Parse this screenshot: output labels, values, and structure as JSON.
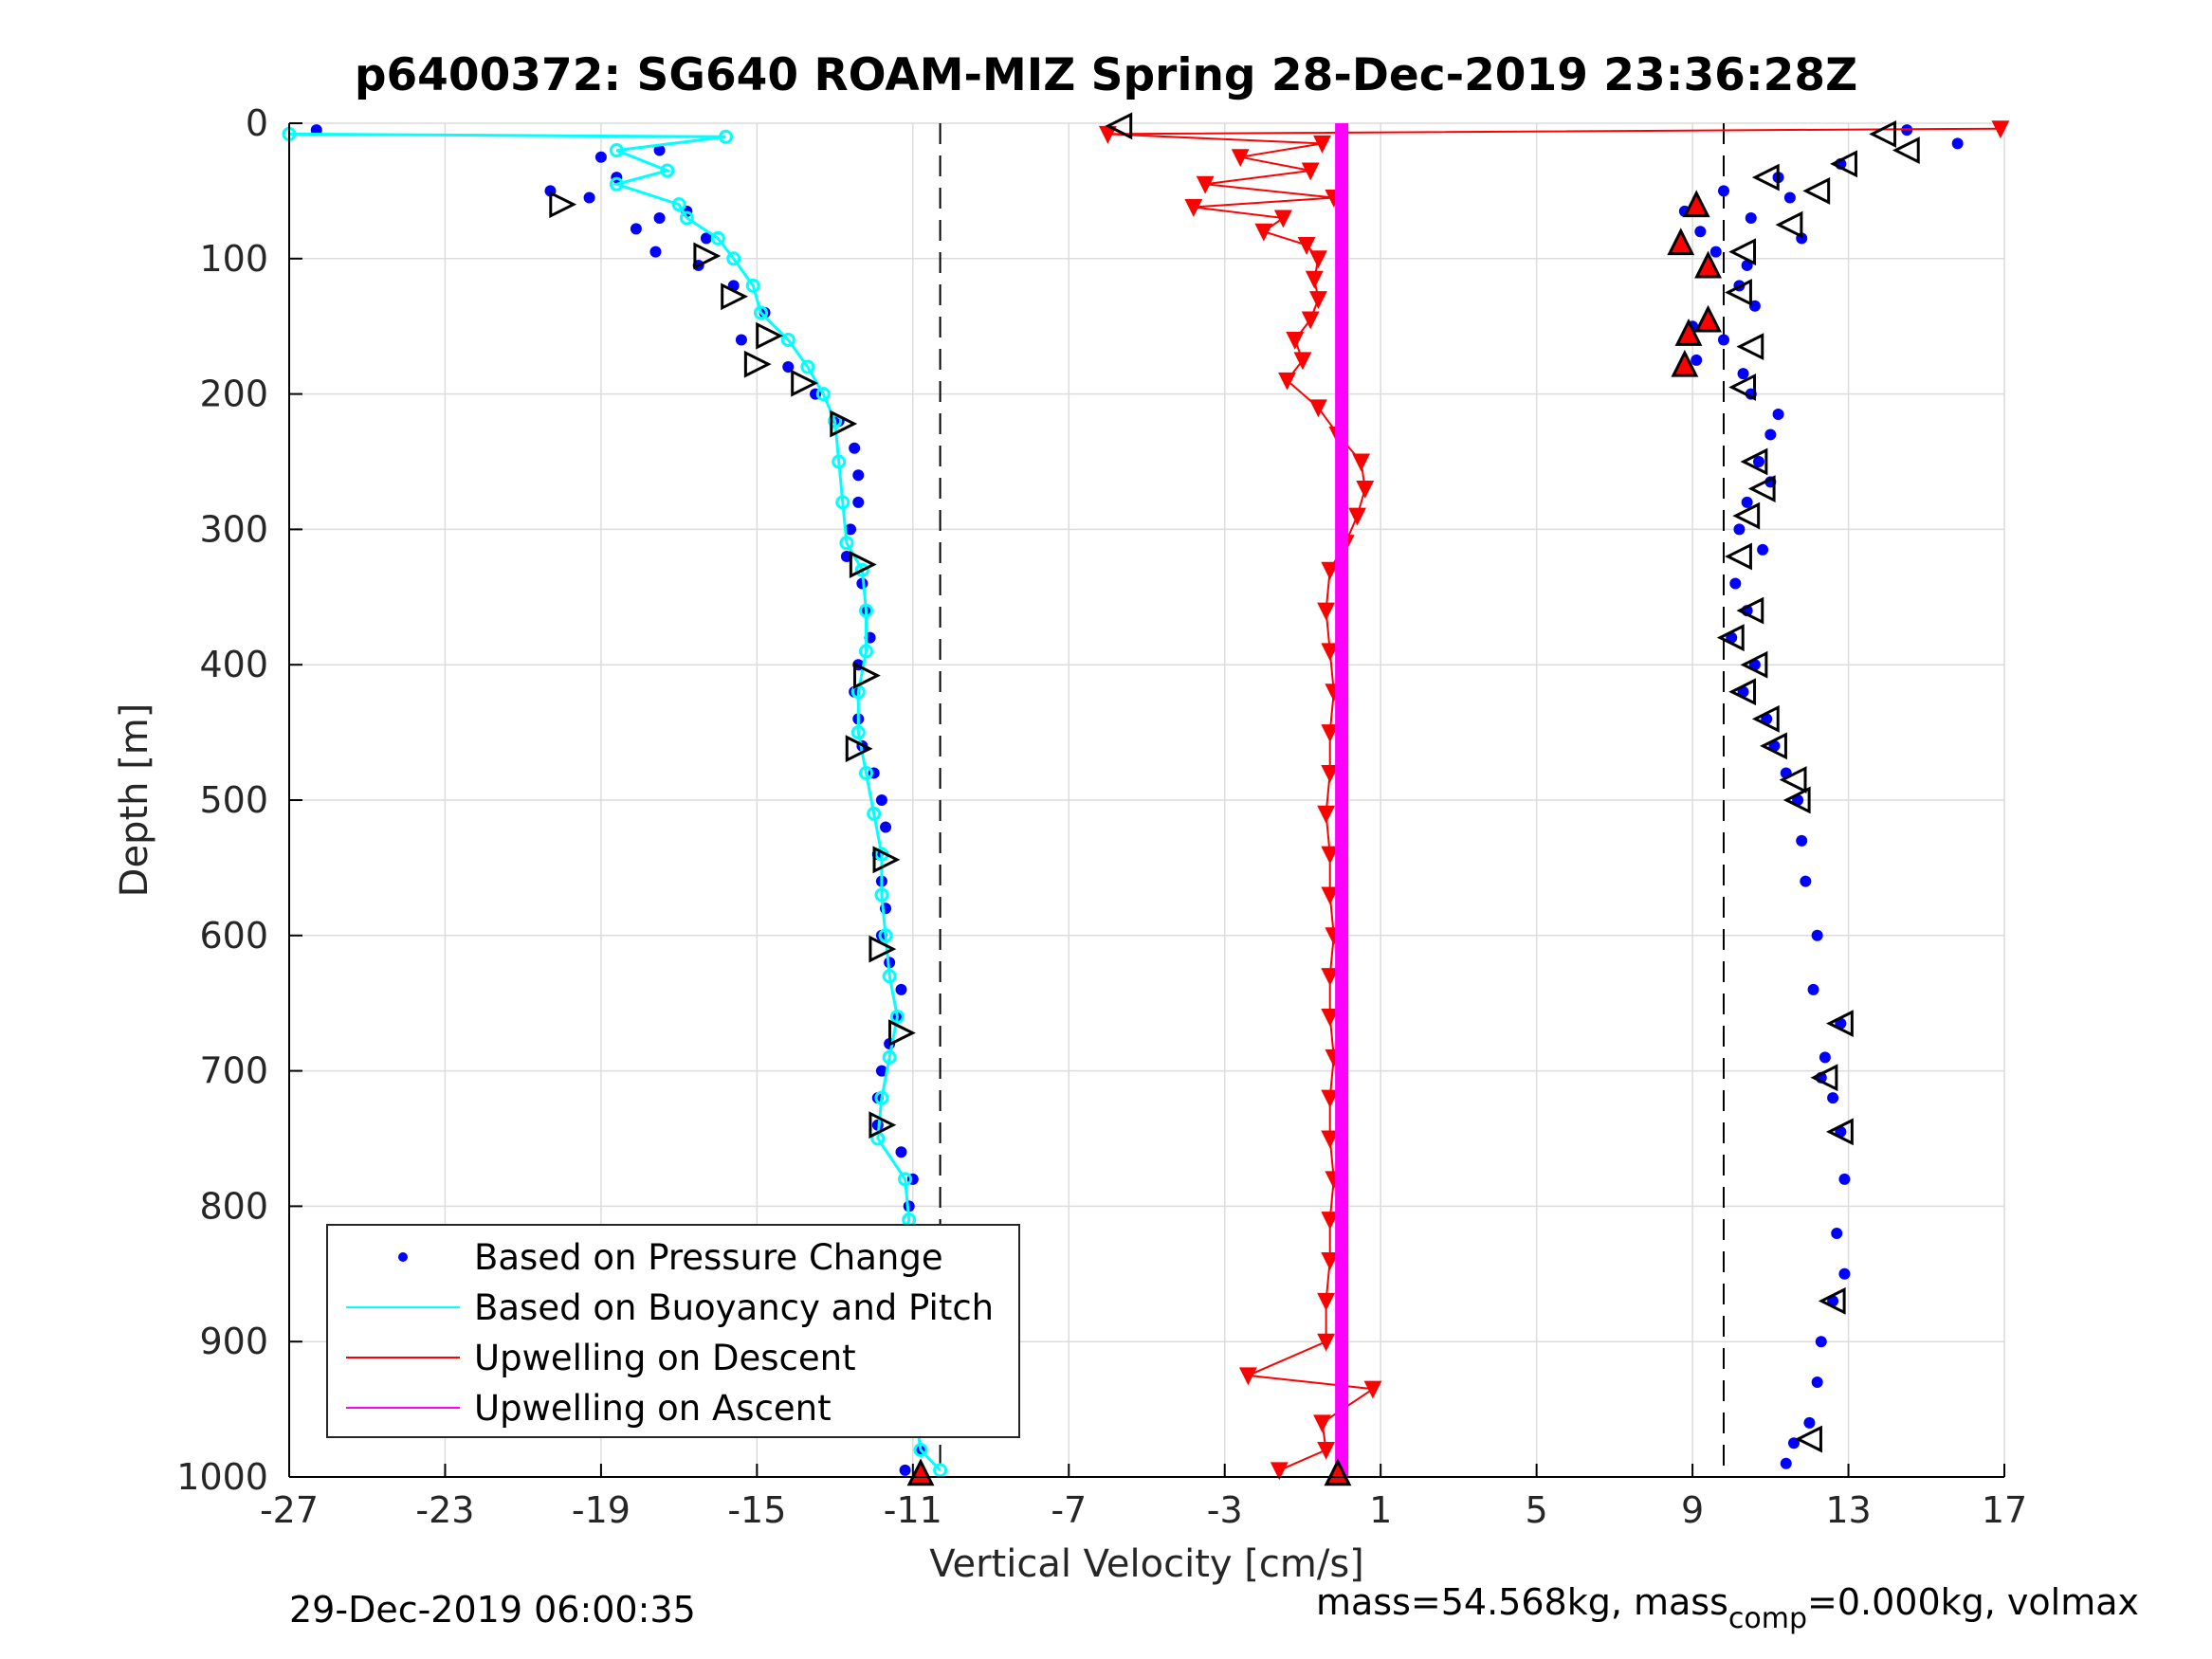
{
  "title": "p6400372: SG640 ROAM-MIZ Spring 28-Dec-2019 23:36:28Z",
  "footer": {
    "left": "29-Dec-2019 06:00:35",
    "right_prefix": "mass=54.568kg, mass",
    "right_sub": "comp",
    "right_suffix": "=0.000kg, volmax"
  },
  "colors": {
    "pressure": "#0000ff",
    "buoyancy": "#00ffff",
    "upwelling_descent": "#ff0000",
    "upwelling_ascent": "#ff00ff"
  },
  "chart_data": {
    "type": "scatter",
    "xlabel": "Vertical Velocity [cm/s]",
    "ylabel": "Depth [m]",
    "xlim": [
      -27,
      17
    ],
    "ylim": [
      0,
      1000
    ],
    "y_reversed": true,
    "xticks": [
      -27,
      -23,
      -19,
      -15,
      -11,
      -7,
      -3,
      1,
      5,
      9,
      13,
      17
    ],
    "yticks": [
      0,
      100,
      200,
      300,
      400,
      500,
      600,
      700,
      800,
      900,
      1000
    ],
    "grid": true,
    "legend_position": "bottom-left",
    "reference_lines_x": [
      -10.3,
      9.8
    ],
    "legend": [
      {
        "label": "Based on Pressure Change",
        "style": "dot",
        "color": "#0000ff"
      },
      {
        "label": "Based on Buoyancy and Pitch",
        "style": "line",
        "color": "#00ffff"
      },
      {
        "label": "Upwelling on Descent",
        "style": "line",
        "color": "#ff0000"
      },
      {
        "label": "Upwelling on Ascent",
        "style": "line",
        "color": "#ff00ff"
      }
    ],
    "series": [
      {
        "name": "Based on Pressure Change",
        "style": "dot",
        "color": "#0000ff",
        "profile": "descent",
        "points": [
          [
            -26.3,
            5
          ],
          [
            -19.0,
            25
          ],
          [
            -17.5,
            20
          ],
          [
            -18.6,
            40
          ],
          [
            -20.3,
            50
          ],
          [
            -19.3,
            55
          ],
          [
            -16.8,
            65
          ],
          [
            -17.5,
            70
          ],
          [
            -18.1,
            78
          ],
          [
            -16.3,
            85
          ],
          [
            -17.6,
            95
          ],
          [
            -16.5,
            105
          ],
          [
            -15.6,
            120
          ],
          [
            -14.8,
            140
          ],
          [
            -15.4,
            160
          ],
          [
            -14.2,
            180
          ],
          [
            -13.5,
            200
          ],
          [
            -12.9,
            220
          ],
          [
            -12.5,
            240
          ],
          [
            -12.4,
            260
          ],
          [
            -12.4,
            280
          ],
          [
            -12.6,
            300
          ],
          [
            -12.7,
            320
          ],
          [
            -12.3,
            340
          ],
          [
            -12.2,
            360
          ],
          [
            -12.1,
            380
          ],
          [
            -12.4,
            400
          ],
          [
            -12.5,
            420
          ],
          [
            -12.4,
            440
          ],
          [
            -12.3,
            460
          ],
          [
            -12.0,
            480
          ],
          [
            -11.8,
            500
          ],
          [
            -11.7,
            520
          ],
          [
            -11.9,
            540
          ],
          [
            -11.8,
            560
          ],
          [
            -11.7,
            580
          ],
          [
            -11.8,
            600
          ],
          [
            -11.6,
            620
          ],
          [
            -11.3,
            640
          ],
          [
            -11.4,
            660
          ],
          [
            -11.6,
            680
          ],
          [
            -11.8,
            700
          ],
          [
            -11.9,
            720
          ],
          [
            -11.9,
            740
          ],
          [
            -11.3,
            760
          ],
          [
            -11.0,
            780
          ],
          [
            -11.1,
            800
          ],
          [
            -11.3,
            820
          ],
          [
            -11.5,
            840
          ],
          [
            -11.7,
            860
          ],
          [
            -11.8,
            880
          ],
          [
            -11.9,
            900
          ],
          [
            -11.7,
            920
          ],
          [
            -10.9,
            940
          ],
          [
            -11.0,
            960
          ],
          [
            -10.8,
            980
          ],
          [
            -11.2,
            995
          ]
        ]
      },
      {
        "name": "Based on Pressure Change",
        "style": "dot",
        "color": "#0000ff",
        "profile": "ascent",
        "points": [
          [
            14.5,
            5
          ],
          [
            15.8,
            15
          ],
          [
            12.8,
            30
          ],
          [
            11.2,
            40
          ],
          [
            9.8,
            50
          ],
          [
            11.5,
            55
          ],
          [
            8.8,
            65
          ],
          [
            10.5,
            70
          ],
          [
            9.2,
            80
          ],
          [
            11.8,
            85
          ],
          [
            9.6,
            95
          ],
          [
            10.4,
            105
          ],
          [
            10.2,
            120
          ],
          [
            10.6,
            135
          ],
          [
            9.0,
            150
          ],
          [
            9.8,
            160
          ],
          [
            9.1,
            175
          ],
          [
            10.3,
            185
          ],
          [
            10.5,
            200
          ],
          [
            11.2,
            215
          ],
          [
            11.0,
            230
          ],
          [
            10.7,
            250
          ],
          [
            11.0,
            265
          ],
          [
            10.4,
            280
          ],
          [
            10.2,
            300
          ],
          [
            10.8,
            315
          ],
          [
            10.1,
            340
          ],
          [
            10.4,
            360
          ],
          [
            10.0,
            380
          ],
          [
            10.6,
            400
          ],
          [
            10.3,
            420
          ],
          [
            10.9,
            440
          ],
          [
            11.1,
            460
          ],
          [
            11.4,
            480
          ],
          [
            11.7,
            500
          ],
          [
            11.8,
            530
          ],
          [
            11.9,
            560
          ],
          [
            12.2,
            600
          ],
          [
            12.1,
            640
          ],
          [
            12.8,
            665
          ],
          [
            12.4,
            690
          ],
          [
            12.3,
            705
          ],
          [
            12.6,
            720
          ],
          [
            12.8,
            745
          ],
          [
            12.9,
            780
          ],
          [
            12.7,
            820
          ],
          [
            12.9,
            850
          ],
          [
            12.6,
            870
          ],
          [
            12.3,
            900
          ],
          [
            12.2,
            930
          ],
          [
            12.0,
            960
          ],
          [
            11.6,
            975
          ],
          [
            11.4,
            990
          ]
        ]
      },
      {
        "name": "Based on Buoyancy and Pitch",
        "style": "line",
        "color": "#00ffff",
        "points": [
          [
            -27.0,
            8
          ],
          [
            -15.8,
            10
          ],
          [
            -18.6,
            20
          ],
          [
            -17.3,
            35
          ],
          [
            -18.6,
            45
          ],
          [
            -17.0,
            60
          ],
          [
            -16.8,
            70
          ],
          [
            -16.0,
            85
          ],
          [
            -15.6,
            100
          ],
          [
            -15.1,
            120
          ],
          [
            -14.9,
            140
          ],
          [
            -14.2,
            160
          ],
          [
            -13.7,
            180
          ],
          [
            -13.3,
            200
          ],
          [
            -13.0,
            220
          ],
          [
            -12.9,
            250
          ],
          [
            -12.8,
            280
          ],
          [
            -12.7,
            310
          ],
          [
            -12.3,
            330
          ],
          [
            -12.2,
            360
          ],
          [
            -12.2,
            390
          ],
          [
            -12.4,
            420
          ],
          [
            -12.4,
            450
          ],
          [
            -12.2,
            480
          ],
          [
            -12.0,
            510
          ],
          [
            -11.8,
            540
          ],
          [
            -11.8,
            570
          ],
          [
            -11.7,
            600
          ],
          [
            -11.6,
            630
          ],
          [
            -11.4,
            660
          ],
          [
            -11.6,
            690
          ],
          [
            -11.8,
            720
          ],
          [
            -11.9,
            750
          ],
          [
            -11.2,
            780
          ],
          [
            -11.1,
            810
          ],
          [
            -11.4,
            840
          ],
          [
            -11.6,
            870
          ],
          [
            -11.8,
            900
          ],
          [
            -11.5,
            930
          ],
          [
            -10.9,
            960
          ],
          [
            -10.8,
            980
          ],
          [
            -10.3,
            995
          ]
        ]
      },
      {
        "name": "Upwelling on Descent",
        "style": "line-triangle",
        "color": "#ff0000",
        "points": [
          [
            16.9,
            4
          ],
          [
            -6.0,
            8
          ],
          [
            -0.5,
            15
          ],
          [
            -2.6,
            25
          ],
          [
            -0.8,
            35
          ],
          [
            -3.5,
            45
          ],
          [
            -0.2,
            55
          ],
          [
            -3.8,
            62
          ],
          [
            -1.5,
            70
          ],
          [
            -2.0,
            80
          ],
          [
            -0.9,
            90
          ],
          [
            -0.6,
            100
          ],
          [
            -0.7,
            115
          ],
          [
            -0.6,
            130
          ],
          [
            -0.8,
            145
          ],
          [
            -1.2,
            160
          ],
          [
            -1.0,
            175
          ],
          [
            -1.4,
            190
          ],
          [
            -0.6,
            210
          ],
          [
            -0.1,
            230
          ],
          [
            0.5,
            250
          ],
          [
            0.6,
            270
          ],
          [
            0.4,
            290
          ],
          [
            0.1,
            310
          ],
          [
            -0.3,
            330
          ],
          [
            -0.4,
            360
          ],
          [
            -0.3,
            390
          ],
          [
            -0.2,
            420
          ],
          [
            -0.3,
            450
          ],
          [
            -0.3,
            480
          ],
          [
            -0.4,
            510
          ],
          [
            -0.3,
            540
          ],
          [
            -0.3,
            570
          ],
          [
            -0.2,
            600
          ],
          [
            -0.3,
            630
          ],
          [
            -0.3,
            660
          ],
          [
            -0.2,
            690
          ],
          [
            -0.3,
            720
          ],
          [
            -0.3,
            750
          ],
          [
            -0.2,
            780
          ],
          [
            -0.3,
            810
          ],
          [
            -0.3,
            840
          ],
          [
            -0.4,
            870
          ],
          [
            -0.4,
            900
          ],
          [
            -2.4,
            925
          ],
          [
            0.8,
            935
          ],
          [
            -0.5,
            960
          ],
          [
            -0.4,
            980
          ],
          [
            -1.6,
            995
          ]
        ]
      },
      {
        "name": "Upwelling on Ascent",
        "style": "line",
        "color": "#ff00ff",
        "points": [
          [
            0.0,
            0
          ],
          [
            0.0,
            1000
          ]
        ]
      },
      {
        "name": "",
        "style": "triangle-marker",
        "color": "#000000",
        "profile": "descent",
        "points": [
          [
            -20.0,
            60
          ],
          [
            -16.3,
            98
          ],
          [
            -15.6,
            128
          ],
          [
            -14.7,
            157
          ],
          [
            -15.0,
            178
          ],
          [
            -13.8,
            192
          ],
          [
            -12.8,
            222
          ],
          [
            -12.3,
            326
          ],
          [
            -12.2,
            408
          ],
          [
            -12.4,
            462
          ],
          [
            -11.7,
            544
          ],
          [
            -11.8,
            610
          ],
          [
            -11.3,
            672
          ],
          [
            -11.8,
            740
          ],
          [
            -11.4,
            830
          ],
          [
            -11.6,
            923
          ]
        ]
      },
      {
        "name": "",
        "style": "triangle-marker",
        "color": "#000000",
        "profile": "ascent",
        "points": [
          [
            -5.7,
            2
          ],
          [
            13.9,
            8
          ],
          [
            14.5,
            20
          ],
          [
            12.9,
            30
          ],
          [
            10.9,
            40
          ],
          [
            12.2,
            50
          ],
          [
            11.5,
            75
          ],
          [
            10.3,
            95
          ],
          [
            10.2,
            125
          ],
          [
            10.5,
            165
          ],
          [
            10.3,
            195
          ],
          [
            10.6,
            250
          ],
          [
            10.8,
            270
          ],
          [
            10.4,
            290
          ],
          [
            10.2,
            320
          ],
          [
            10.5,
            360
          ],
          [
            10.0,
            380
          ],
          [
            10.6,
            400
          ],
          [
            10.3,
            420
          ],
          [
            10.9,
            440
          ],
          [
            11.1,
            460
          ],
          [
            11.6,
            485
          ],
          [
            11.7,
            500
          ],
          [
            12.8,
            665
          ],
          [
            12.4,
            705
          ],
          [
            12.8,
            745
          ],
          [
            12.6,
            870
          ],
          [
            12.0,
            972
          ]
        ]
      },
      {
        "name": "",
        "style": "red-triangle-marker",
        "color": "#ff0000",
        "points": [
          [
            9.1,
            60
          ],
          [
            8.7,
            88
          ],
          [
            9.4,
            105
          ],
          [
            9.4,
            145
          ],
          [
            8.9,
            155
          ],
          [
            8.8,
            178
          ],
          [
            -10.8,
            997
          ],
          [
            -0.1,
            997
          ]
        ]
      }
    ]
  }
}
